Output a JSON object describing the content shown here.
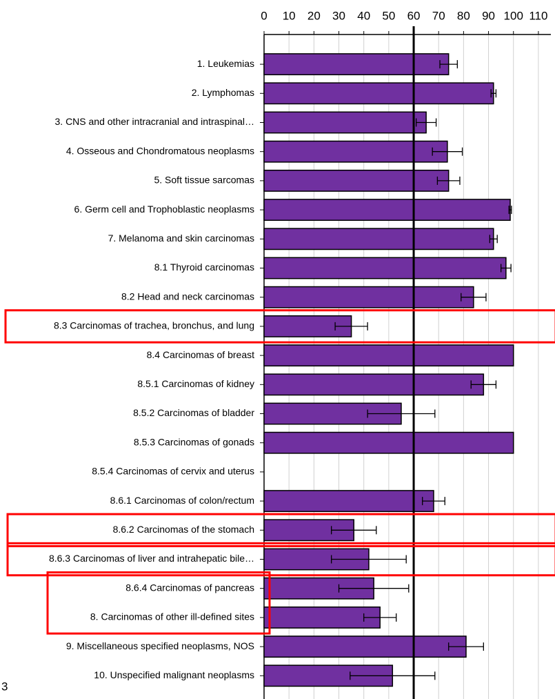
{
  "chart_data": {
    "type": "hbar",
    "categories": [
      "1. Leukemias",
      "2. Lymphomas",
      "3. CNS and other intracranial and intraspinal…",
      "4. Osseous and Chondromatous neoplasms",
      "5. Soft tissue sarcomas",
      "6. Germ cell and Trophoblastic neoplasms",
      "7. Melanoma and skin carcinomas",
      "8.1 Thyroid carcinomas",
      "8.2 Head and neck carcinomas",
      "8.3 Carcinomas of trachea, bronchus, and lung",
      "8.4 Carcinomas of breast",
      "8.5.1 Carcinomas of kidney",
      "8.5.2 Carcinomas of bladder",
      "8.5.3 Carcinomas of gonads",
      "8.5.4 Carcinomas of cervix and uterus",
      "8.6.1 Carcinomas of colon/rectum",
      "8.6.2 Carcinomas of the stomach",
      "8.6.3 Carcinomas of liver and intrahepatic bile…",
      "8.6.4 Carcinomas of pancreas",
      "8. Carcinomas of other ill-defined sites",
      "9. Miscellaneous specified neoplasms, NOS",
      "10. Unspecified malignant neoplasms"
    ],
    "values": [
      74,
      92,
      65,
      73.5,
      74,
      98.7,
      92,
      97,
      84,
      35,
      100,
      88,
      55,
      100,
      null,
      68,
      36,
      42,
      44,
      46.5,
      81,
      51.5
    ],
    "errors": [
      3.5,
      1,
      4,
      6,
      4.5,
      0.5,
      1.5,
      2,
      5,
      6.5,
      null,
      5,
      13.5,
      null,
      null,
      4.5,
      9,
      15,
      14,
      6.5,
      7,
      17
    ],
    "color": "#7030a0",
    "xlim": [
      0,
      115
    ],
    "xticks": [
      0,
      10,
      20,
      30,
      40,
      50,
      60,
      70,
      80,
      90,
      100,
      110
    ],
    "grid": true,
    "reference_line": 60,
    "highlight_color": "#ff0000",
    "footnote": "3"
  }
}
